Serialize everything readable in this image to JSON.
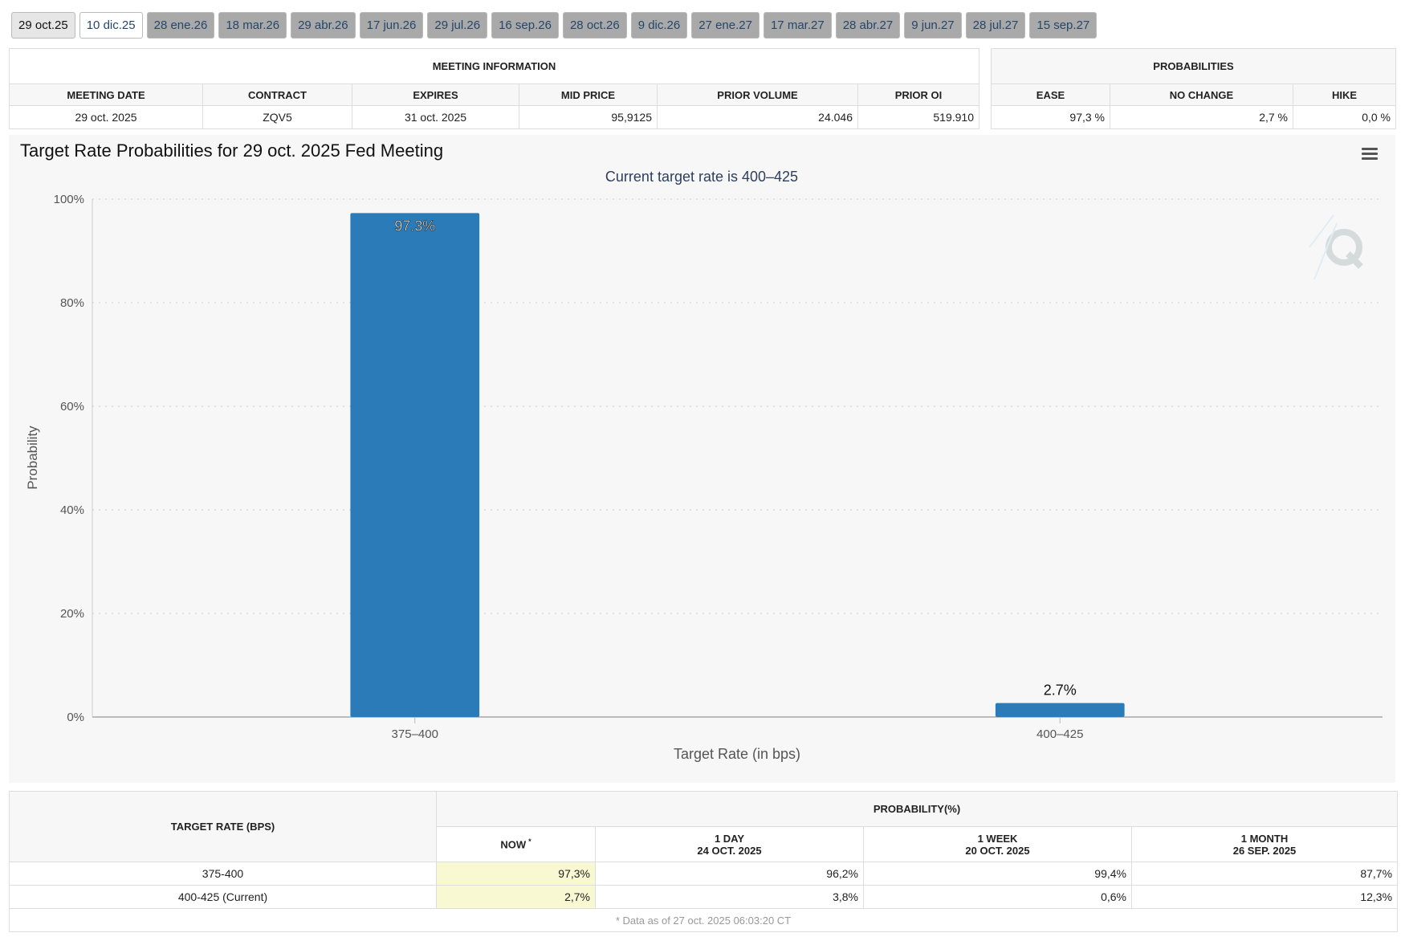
{
  "tabs": [
    "29 oct.25",
    "10 dic.25",
    "28 ene.26",
    "18 mar.26",
    "29 abr.26",
    "17 jun.26",
    "29 jul.26",
    "16 sep.26",
    "28 oct.26",
    "9 dic.26",
    "27 ene.27",
    "17 mar.27",
    "28 abr.27",
    "9 jun.27",
    "28 jul.27",
    "15 sep.27"
  ],
  "meeting_info": {
    "title": "MEETING INFORMATION",
    "headers": [
      "MEETING DATE",
      "CONTRACT",
      "EXPIRES",
      "MID PRICE",
      "PRIOR VOLUME",
      "PRIOR OI"
    ],
    "row": [
      "29 oct. 2025",
      "ZQV5",
      "31 oct. 2025",
      "95,9125",
      "24.046",
      "519.910"
    ]
  },
  "probabilities": {
    "title": "PROBABILITIES",
    "headers": [
      "EASE",
      "NO CHANGE",
      "HIKE"
    ],
    "row": [
      "97,3 %",
      "2,7 %",
      "0,0 %"
    ]
  },
  "chart_data": {
    "type": "bar",
    "title": "Target Rate Probabilities for 29 oct. 2025 Fed Meeting",
    "subtitle": "Current target rate is 400–425",
    "x_label": "Target Rate (in bps)",
    "y_label": "Probability",
    "categories": [
      "375–400",
      "400–425"
    ],
    "values": [
      97.3,
      2.7
    ],
    "value_labels": [
      "97.3%",
      "2.7%"
    ],
    "color": "#2b7bb8",
    "ylim": [
      0,
      100
    ],
    "yticks": [
      {
        "value": 0,
        "label": "0%"
      },
      {
        "value": 20,
        "label": "20%"
      },
      {
        "value": 40,
        "label": "40%"
      },
      {
        "value": 60,
        "label": "60%"
      },
      {
        "value": 80,
        "label": "80%"
      },
      {
        "value": 100,
        "label": "100%"
      }
    ],
    "grid": true
  },
  "table": {
    "header": "TARGET RATE (BPS)",
    "group": "PROBABILITY(%)",
    "columns": [
      {
        "name": "NOW",
        "note": "*"
      },
      {
        "name": "1 DAY",
        "date": "24 OCT. 2025"
      },
      {
        "name": "1 WEEK",
        "date": "20 OCT. 2025"
      },
      {
        "name": "1 MONTH",
        "date": "26 SEP. 2025"
      }
    ],
    "rows": [
      [
        "375-400",
        "97,3%",
        "96,2%",
        "99,4%",
        "87,7%"
      ],
      [
        "400-425 (Current)",
        "2,7%",
        "3,8%",
        "0,6%",
        "12,3%"
      ]
    ],
    "footnote": "* Data as of 27 oct. 2025 06:03:20 CT"
  }
}
